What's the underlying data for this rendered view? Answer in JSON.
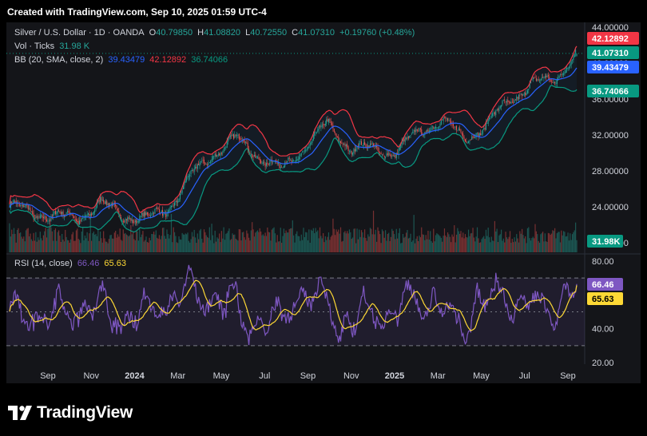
{
  "header": {
    "text": "Created with TradingView.com, Sep 10, 2025 01:59 UTC-4"
  },
  "legend": {
    "symbol": "Silver / U.S. Dollar · 1D · OANDA",
    "open_label": "O",
    "open": "40.79850",
    "high_label": "H",
    "high": "41.08820",
    "low_label": "L",
    "low": "40.72550",
    "close_label": "C",
    "close": "41.07310",
    "change": "+0.19760 (+0.48%)",
    "vol_label": "Vol · Ticks",
    "vol": "31.98 K",
    "bb_label": "BB (20, SMA, close, 2)",
    "bb_basis": "39.43479",
    "bb_upper": "42.12892",
    "bb_lower": "36.74066",
    "rsi_label": "RSI (14, close)",
    "rsi": "66.46",
    "rsi_ma": "65.63"
  },
  "price_axis": {
    "ticks": [
      "44.00000",
      "40.00000",
      "36.00000",
      "32.00000",
      "28.00000",
      "24.00000",
      "20.00000"
    ],
    "tags": [
      {
        "text": "42.12892",
        "value": 42.12892,
        "color": "#f23645"
      },
      {
        "text": "41.07310",
        "value": 41.0731,
        "color": "#089981"
      },
      {
        "text": "39.43479",
        "value": 39.43479,
        "color": "#2962ff"
      },
      {
        "text": "36.74066",
        "value": 36.74066,
        "color": "#089981"
      }
    ],
    "volume_tag": {
      "text": "31.98K",
      "color": "#089981"
    }
  },
  "rsi_axis": {
    "ticks": [
      "80.00",
      "40.00",
      "20.00"
    ],
    "tags": [
      {
        "text": "66.46",
        "value": 66.46,
        "color": "#7e57c2"
      },
      {
        "text": "65.63",
        "value": 65.63,
        "color": "#fdd835"
      }
    ]
  },
  "time_axis": {
    "labels": [
      "Sep",
      "Nov",
      "2024",
      "Mar",
      "May",
      "Jul",
      "Sep",
      "Nov",
      "2025",
      "Mar",
      "May",
      "Jul",
      "Sep"
    ],
    "bold": [
      false,
      false,
      true,
      false,
      false,
      false,
      false,
      false,
      true,
      false,
      false,
      false,
      false
    ]
  },
  "chart_data": {
    "type": "candlestick",
    "title": "Silver / U.S. Dollar · 1D · OANDA",
    "series": [
      "BB basis",
      "BB upper",
      "BB lower",
      "Volume",
      "RSI",
      "RSI MA"
    ],
    "anchors": {
      "dates": [
        "2023-08",
        "2023-09",
        "2023-10",
        "2023-11",
        "2023-12",
        "2024-01",
        "2024-02",
        "2024-03",
        "2024-04",
        "2024-05",
        "2024-06",
        "2024-07",
        "2024-08",
        "2024-09",
        "2024-10",
        "2024-11",
        "2024-12",
        "2025-01",
        "2025-02",
        "2025-03",
        "2025-04",
        "2025-05",
        "2025-06",
        "2025-07",
        "2025-08",
        "2025-09"
      ],
      "close": [
        24.2,
        23.3,
        23.0,
        22.7,
        24.4,
        23.1,
        22.6,
        23.8,
        27.4,
        30.0,
        31.6,
        29.6,
        28.1,
        30.6,
        33.2,
        30.6,
        30.4,
        30.1,
        32.2,
        33.8,
        31.6,
        33.0,
        35.8,
        37.6,
        38.2,
        41.07
      ]
    },
    "price_range": [
      20,
      44
    ],
    "rsi_range": [
      20,
      80
    ],
    "rsi_bands": [
      70,
      50,
      30
    ],
    "last": {
      "open": 40.7985,
      "high": 41.0882,
      "low": 40.7255,
      "close": 41.0731
    },
    "bollinger": {
      "basis": 39.43479,
      "upper": 42.12892,
      "lower": 36.74066
    },
    "rsi_last": {
      "rsi": 66.46,
      "ma": 65.63
    },
    "volume_last": "31.98K"
  },
  "branding": {
    "logo_text": "TradingView"
  }
}
